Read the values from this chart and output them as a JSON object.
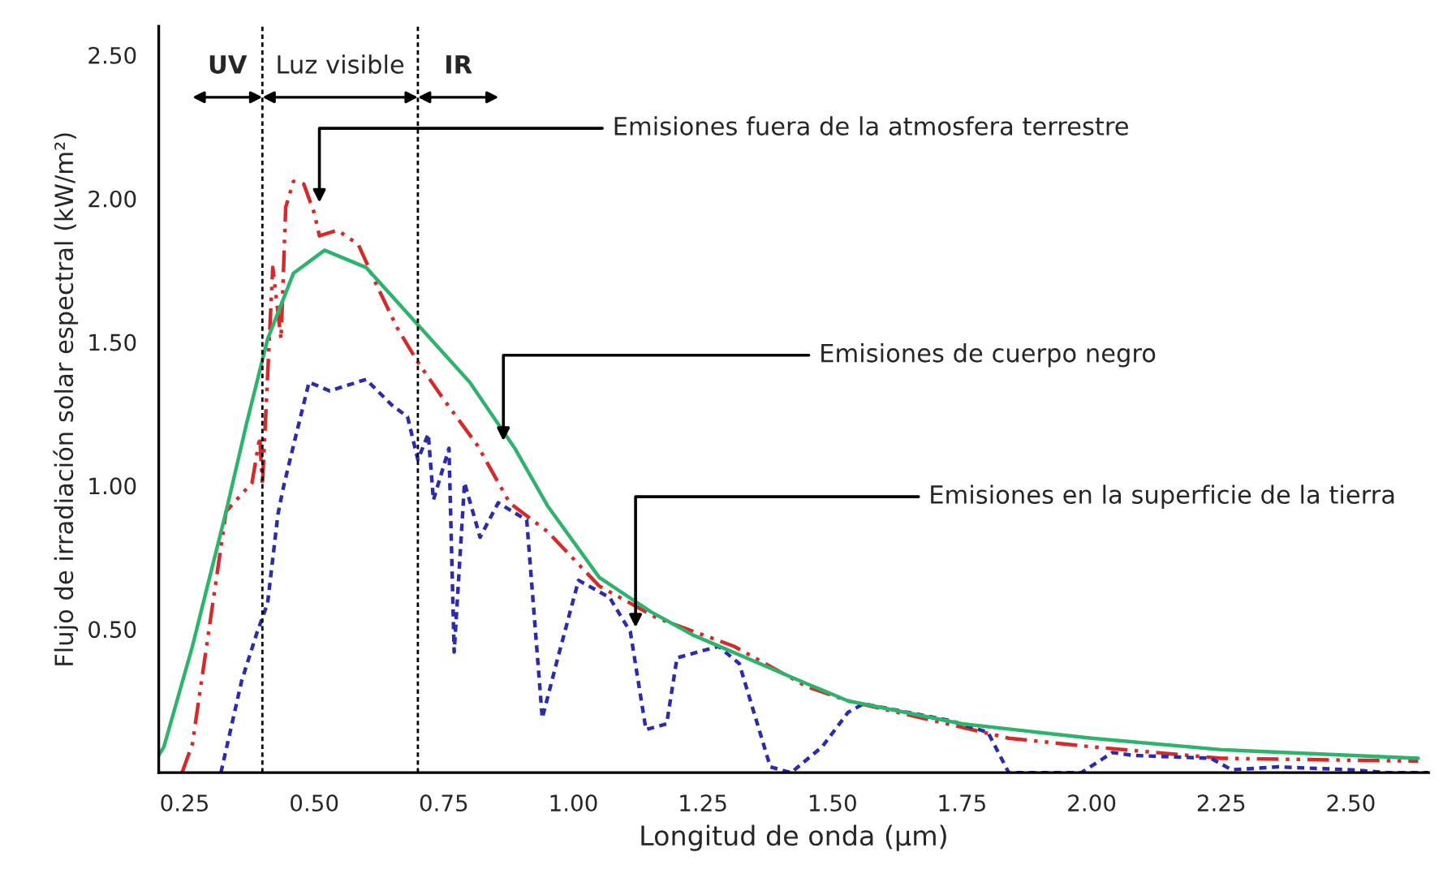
{
  "chart_data": {
    "type": "line",
    "xlabel": "Longitud de onda (μm)",
    "ylabel": "Flujo de irradiación solar espectral (kW/m²)",
    "xlim": [
      0.2,
      2.65
    ],
    "ylim": [
      0,
      2.6
    ],
    "xticks": [
      {
        "value": 0.25,
        "label": "0.25"
      },
      {
        "value": 0.5,
        "label": "0.50"
      },
      {
        "value": 0.75,
        "label": "0.75"
      },
      {
        "value": 1.0,
        "label": "1.00"
      },
      {
        "value": 1.25,
        "label": "1.25"
      },
      {
        "value": 1.5,
        "label": "1.50"
      },
      {
        "value": 1.75,
        "label": "1.75"
      },
      {
        "value": 2.0,
        "label": "2.00"
      },
      {
        "value": 2.25,
        "label": "2.25"
      },
      {
        "value": 2.5,
        "label": "2.50"
      }
    ],
    "yticks": [
      {
        "value": 0.5,
        "label": "0.50"
      },
      {
        "value": 1.0,
        "label": "1.00"
      },
      {
        "value": 1.5,
        "label": "1.50"
      },
      {
        "value": 2.0,
        "label": "2.00"
      },
      {
        "value": 2.5,
        "label": "2.50"
      }
    ],
    "grid": false,
    "legend": false,
    "marker": "none",
    "series": [
      {
        "color": "#d42a2a",
        "line_style": "dashed",
        "x": [
          0.245,
          0.265,
          0.33,
          0.38,
          0.395,
          0.4,
          0.42,
          0.436,
          0.445,
          0.46,
          0.48,
          0.5,
          0.51,
          0.545,
          0.585,
          0.62,
          0.66,
          0.7,
          0.75,
          0.815,
          0.877,
          0.95,
          1.05,
          1.16,
          1.31,
          1.45,
          1.53,
          1.84,
          2.0,
          2.25,
          2.63
        ],
        "values": [
          0,
          0.1,
          0.91,
          1.01,
          1.17,
          1.0,
          1.76,
          1.51,
          1.97,
          2.06,
          2.05,
          1.95,
          1.87,
          1.89,
          1.84,
          1.7,
          1.55,
          1.43,
          1.3,
          1.14,
          0.94,
          0.84,
          0.65,
          0.54,
          0.44,
          0.3,
          0.25,
          0.12,
          0.09,
          0.05,
          0.04
        ]
      },
      {
        "color": "#2b2bb0",
        "line_style": "dotted",
        "x": [
          0.32,
          0.36,
          0.39,
          0.41,
          0.43,
          0.44,
          0.46,
          0.49,
          0.53,
          0.6,
          0.65,
          0.68,
          0.7,
          0.72,
          0.73,
          0.76,
          0.77,
          0.79,
          0.82,
          0.855,
          0.91,
          0.92,
          0.94,
          0.97,
          1.01,
          1.07,
          1.11,
          1.14,
          1.18,
          1.2,
          1.28,
          1.32,
          1.38,
          1.42,
          1.48,
          1.53,
          1.56,
          1.73,
          1.8,
          1.84,
          1.98,
          2.04,
          2.08,
          2.23,
          2.27,
          2.36,
          2.5,
          2.57,
          2.65
        ],
        "values": [
          0,
          0.32,
          0.49,
          0.59,
          0.9,
          0.99,
          1.14,
          1.36,
          1.33,
          1.37,
          1.28,
          1.24,
          1.09,
          1.18,
          0.95,
          1.13,
          0.42,
          1.01,
          0.82,
          0.94,
          0.88,
          0.65,
          0.19,
          0.4,
          0.67,
          0.61,
          0.49,
          0.15,
          0.17,
          0.4,
          0.44,
          0.38,
          0.02,
          0,
          0.09,
          0.21,
          0.24,
          0.18,
          0.14,
          0,
          0,
          0.07,
          0.06,
          0.05,
          0.01,
          0.02,
          0.01,
          0,
          0
        ]
      },
      {
        "color": "#2db36b",
        "line_style": "solid",
        "x": [
          0.2,
          0.21,
          0.265,
          0.33,
          0.37,
          0.41,
          0.46,
          0.52,
          0.6,
          0.7,
          0.8,
          0.887,
          0.95,
          1.05,
          1.15,
          1.23,
          1.45,
          1.53,
          1.75,
          2.0,
          2.25,
          2.63
        ],
        "values": [
          0.06,
          0.09,
          0.44,
          0.91,
          1.22,
          1.51,
          1.74,
          1.82,
          1.76,
          1.56,
          1.36,
          1.13,
          0.93,
          0.68,
          0.56,
          0.48,
          0.31,
          0.25,
          0.17,
          0.12,
          0.08,
          0.05
        ]
      }
    ],
    "ref_lines": [
      {
        "axis": "x",
        "value": 0.4,
        "line_style": "dotted",
        "color": "#000000"
      },
      {
        "axis": "x",
        "value": 0.7,
        "line_style": "dotted",
        "color": "#000000"
      }
    ],
    "annotations": [
      "UV",
      "Luz visible",
      "IR",
      {
        "text": "Emisiones fuera de la atmosfera terrestre",
        "x": 0.51,
        "y": 1.97
      },
      {
        "text": "Emisiones de cuerpo negro",
        "x": 0.865,
        "y": 1.14
      },
      {
        "text": "Emisiones en la superficie de la tierra",
        "x": 1.12,
        "y": 0.49
      }
    ]
  }
}
